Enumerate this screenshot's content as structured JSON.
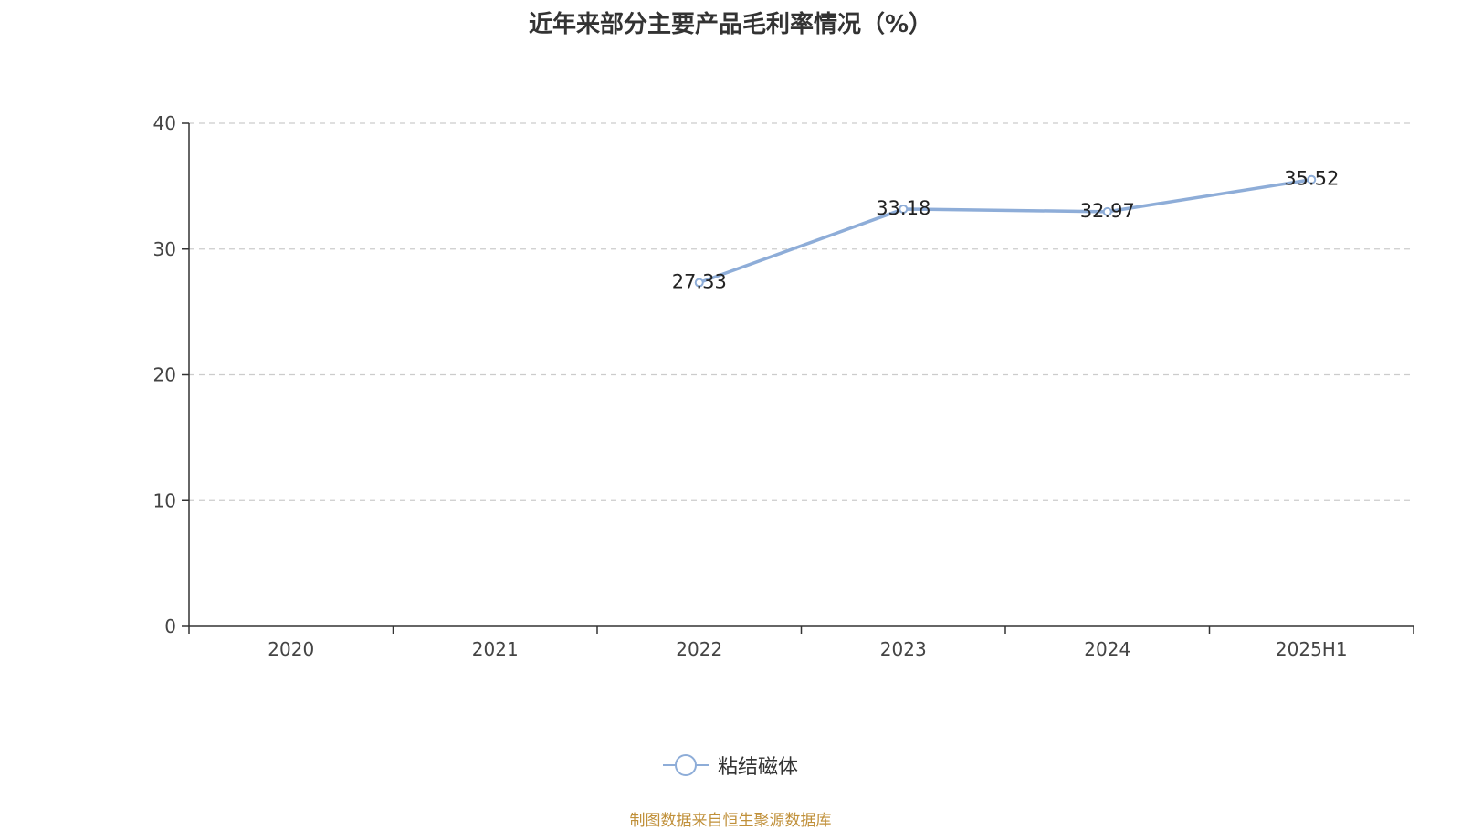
{
  "chart_data": {
    "type": "line",
    "title": "近年来部分主要产品毛利率情况（%）",
    "categories": [
      "2020",
      "2021",
      "2022",
      "2023",
      "2024",
      "2025H1"
    ],
    "series": [
      {
        "name": "粘结磁体",
        "values": [
          null,
          null,
          27.33,
          33.18,
          32.97,
          35.52
        ]
      }
    ],
    "ylim": [
      0,
      40
    ],
    "yticks": [
      0,
      10,
      20,
      30,
      40
    ],
    "xlabel": "",
    "ylabel": "",
    "grid": "horizontal-dashed",
    "legend_position": "bottom",
    "show_data_labels": true
  },
  "colors": {
    "series": "#8eadd8",
    "source": "#c0903a",
    "axis": "#333333",
    "grid": "#cccccc"
  },
  "footer": {
    "source": "制图数据来自恒生聚源数据库"
  }
}
